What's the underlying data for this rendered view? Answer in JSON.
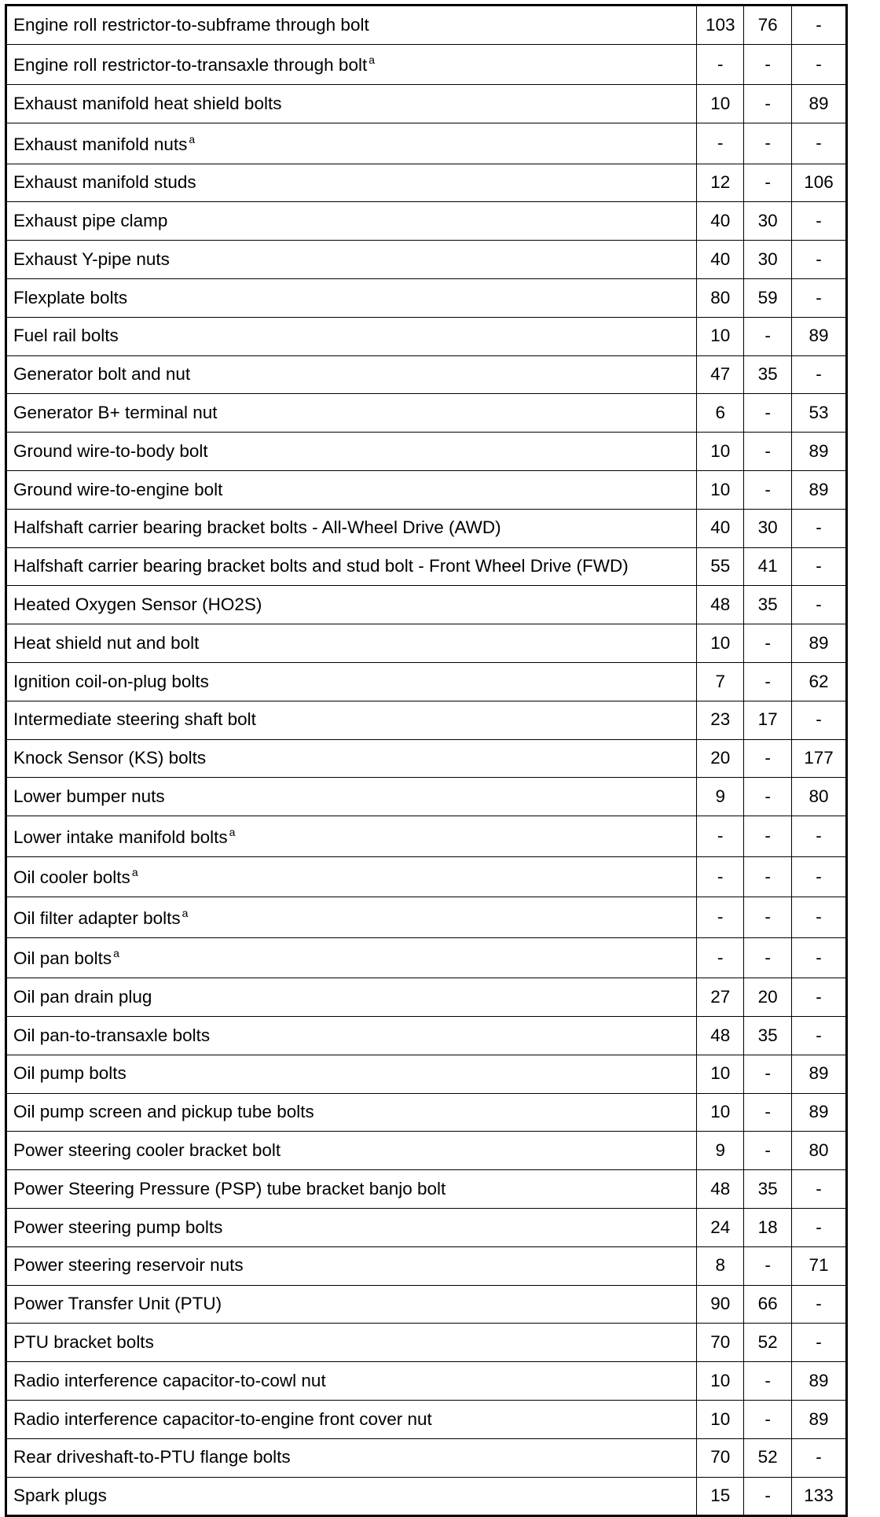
{
  "rows": [
    {
      "name": "Engine roll restrictor-to-subframe through bolt",
      "nm": "103",
      "lbft": "76",
      "lbin": "-"
    },
    {
      "name": "Engine roll restrictor-to-transaxle through bolt",
      "note": "a",
      "nm": "-",
      "lbft": "-",
      "lbin": "-"
    },
    {
      "name": "Exhaust manifold heat shield bolts",
      "nm": "10",
      "lbft": "-",
      "lbin": "89"
    },
    {
      "name": "Exhaust manifold nuts",
      "note": "a",
      "nm": "-",
      "lbft": "-",
      "lbin": "-"
    },
    {
      "name": "Exhaust manifold studs",
      "nm": "12",
      "lbft": "-",
      "lbin": "106"
    },
    {
      "name": "Exhaust pipe clamp",
      "nm": "40",
      "lbft": "30",
      "lbin": "-"
    },
    {
      "name": "Exhaust Y-pipe nuts",
      "nm": "40",
      "lbft": "30",
      "lbin": "-"
    },
    {
      "name": "Flexplate bolts",
      "nm": "80",
      "lbft": "59",
      "lbin": "-"
    },
    {
      "name": "Fuel rail bolts",
      "nm": "10",
      "lbft": "-",
      "lbin": "89"
    },
    {
      "name": "Generator bolt and nut",
      "nm": "47",
      "lbft": "35",
      "lbin": "-"
    },
    {
      "name": "Generator B+ terminal nut",
      "nm": "6",
      "lbft": "-",
      "lbin": "53"
    },
    {
      "name": "Ground wire-to-body bolt",
      "nm": "10",
      "lbft": "-",
      "lbin": "89"
    },
    {
      "name": "Ground wire-to-engine bolt",
      "nm": "10",
      "lbft": "-",
      "lbin": "89"
    },
    {
      "name": "Halfshaft carrier bearing bracket bolts - All-Wheel Drive (AWD)",
      "nm": "40",
      "lbft": "30",
      "lbin": "-"
    },
    {
      "name": "Halfshaft carrier bearing bracket bolts and stud bolt - Front Wheel Drive (FWD)",
      "nm": "55",
      "lbft": "41",
      "lbin": "-"
    },
    {
      "name": "Heated Oxygen Sensor (HO2S)",
      "nm": "48",
      "lbft": "35",
      "lbin": "-"
    },
    {
      "name": "Heat shield nut and bolt",
      "nm": "10",
      "lbft": "-",
      "lbin": "89"
    },
    {
      "name": "Ignition coil-on-plug bolts",
      "nm": "7",
      "lbft": "-",
      "lbin": "62"
    },
    {
      "name": "Intermediate steering shaft bolt",
      "nm": "23",
      "lbft": "17",
      "lbin": "-"
    },
    {
      "name": "Knock Sensor (KS) bolts",
      "nm": "20",
      "lbft": "-",
      "lbin": "177"
    },
    {
      "name": "Lower bumper nuts",
      "nm": "9",
      "lbft": "-",
      "lbin": "80"
    },
    {
      "name": "Lower intake manifold bolts",
      "note": "a",
      "nm": "-",
      "lbft": "-",
      "lbin": "-"
    },
    {
      "name": "Oil cooler bolts",
      "note": "a",
      "nm": "-",
      "lbft": "-",
      "lbin": "-"
    },
    {
      "name": "Oil filter adapter bolts",
      "note": "a",
      "nm": "-",
      "lbft": "-",
      "lbin": "-"
    },
    {
      "name": "Oil pan bolts",
      "note": "a",
      "nm": "-",
      "lbft": "-",
      "lbin": "-"
    },
    {
      "name": "Oil pan drain plug",
      "nm": "27",
      "lbft": "20",
      "lbin": "-"
    },
    {
      "name": "Oil pan-to-transaxle bolts",
      "nm": "48",
      "lbft": "35",
      "lbin": "-"
    },
    {
      "name": "Oil pump bolts",
      "nm": "10",
      "lbft": "-",
      "lbin": "89"
    },
    {
      "name": "Oil pump screen and pickup tube bolts",
      "nm": "10",
      "lbft": "-",
      "lbin": "89"
    },
    {
      "name": "Power steering cooler bracket bolt",
      "nm": "9",
      "lbft": "-",
      "lbin": "80"
    },
    {
      "name": "Power Steering Pressure (PSP) tube bracket banjo bolt",
      "nm": "48",
      "lbft": "35",
      "lbin": "-"
    },
    {
      "name": "Power steering pump bolts",
      "nm": "24",
      "lbft": "18",
      "lbin": "-"
    },
    {
      "name": "Power steering reservoir nuts",
      "nm": "8",
      "lbft": "-",
      "lbin": "71"
    },
    {
      "name": "Power Transfer Unit (PTU)",
      "nm": "90",
      "lbft": "66",
      "lbin": "-"
    },
    {
      "name": "PTU bracket bolts",
      "nm": "70",
      "lbft": "52",
      "lbin": "-"
    },
    {
      "name": "Radio interference capacitor-to-cowl nut",
      "nm": "10",
      "lbft": "-",
      "lbin": "89"
    },
    {
      "name": "Radio interference capacitor-to-engine front cover nut",
      "nm": "10",
      "lbft": "-",
      "lbin": "89"
    },
    {
      "name": "Rear driveshaft-to-PTU flange bolts",
      "nm": "70",
      "lbft": "52",
      "lbin": "-"
    },
    {
      "name": "Spark plugs",
      "nm": "15",
      "lbft": "-",
      "lbin": "133"
    }
  ]
}
